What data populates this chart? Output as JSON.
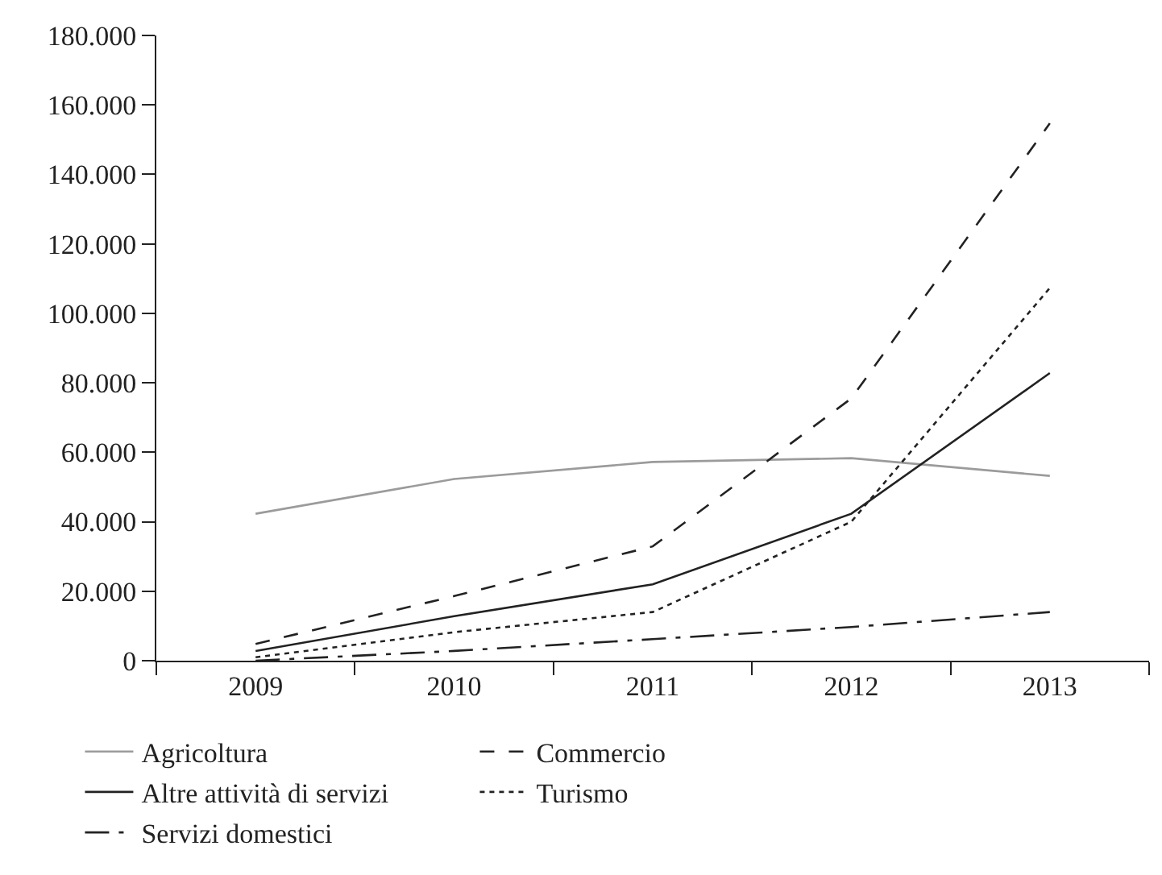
{
  "chart_data": {
    "type": "line",
    "categories": [
      "2009",
      "2010",
      "2011",
      "2012",
      "2013"
    ],
    "series": [
      {
        "name": "Agricoltura",
        "color": "#9b9b9b",
        "line_style": "solid",
        "values": [
          42300,
          52300,
          57200,
          58300,
          53200
        ]
      },
      {
        "name": "Commercio",
        "color": "#222222",
        "line_style": "dashed",
        "values": [
          4800,
          18600,
          32900,
          75500,
          154700
        ]
      },
      {
        "name": "Altre attività di servizi",
        "color": "#222222",
        "line_style": "solid",
        "values": [
          2800,
          12800,
          22000,
          42300,
          82800
        ]
      },
      {
        "name": "Turismo",
        "color": "#222222",
        "line_style": "dotted",
        "values": [
          1000,
          8200,
          14000,
          40000,
          107300
        ]
      },
      {
        "name": "Servizi domestici",
        "color": "#222222",
        "line_style": "dashdot",
        "values": [
          0,
          2800,
          6200,
          9700,
          14000
        ]
      }
    ],
    "ylim": [
      0,
      180000
    ],
    "yticks": [
      {
        "value": 0,
        "label": "0"
      },
      {
        "value": 20000,
        "label": "20.000"
      },
      {
        "value": 40000,
        "label": "40.000"
      },
      {
        "value": 60000,
        "label": "60.000"
      },
      {
        "value": 80000,
        "label": "80.000"
      },
      {
        "value": 100000,
        "label": "100.000"
      },
      {
        "value": 120000,
        "label": "120.000"
      },
      {
        "value": 140000,
        "label": "140.000"
      },
      {
        "value": 160000,
        "label": "160.000"
      },
      {
        "value": 180000,
        "label": "180.000"
      }
    ],
    "grid": false,
    "legend": "bottom",
    "marker": "none"
  }
}
